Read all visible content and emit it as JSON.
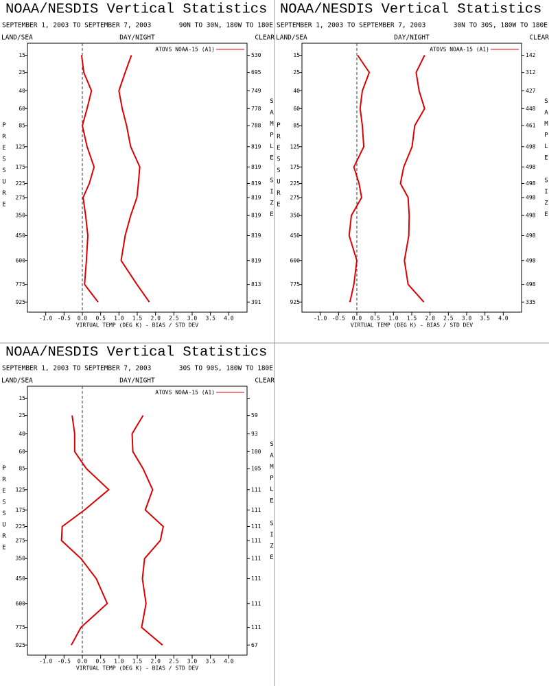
{
  "chart_data": [
    {
      "type": "line",
      "title": "NOAA/NESDIS Vertical Statistics",
      "subtitle": "SEPTEMBER 1, 2003 TO SEPTEMBER 7, 2003",
      "region": "90N TO 30N, 180W TO 180E",
      "header_left": "LAND/SEA",
      "header_center": "DAY/NIGHT",
      "header_right": "CLEAR",
      "y_label": "PRESSURE",
      "y2_label": "SAMPLE SIZE",
      "x_label": "VIRTUAL TEMP (DEG K) - BIAS / STD DEV",
      "y": [
        15,
        25,
        40,
        60,
        85,
        125,
        175,
        225,
        275,
        350,
        450,
        600,
        775,
        925
      ],
      "series": [
        {
          "name": "ATOVS NOAA-15 (A1)",
          "color": "#dd0000",
          "values": [
            -0.02,
            0.04,
            0.25,
            0.13,
            0.0,
            0.13,
            0.32,
            0.19,
            0.02,
            0.09,
            0.15,
            0.11,
            0.06,
            0.43
          ],
          "std_dev": [
            1.34,
            1.17,
            1.0,
            1.09,
            1.21,
            1.32,
            1.57,
            1.53,
            1.49,
            1.32,
            1.17,
            1.06,
            1.49,
            1.83
          ]
        }
      ],
      "sample_size": [
        530,
        695,
        749,
        778,
        788,
        819,
        819,
        819,
        819,
        819,
        819,
        819,
        813,
        391
      ],
      "xlim": [
        -1.5,
        4.5
      ],
      "xticks": [
        {
          "value": -1,
          "label": "-1.0"
        },
        -0.5,
        {
          "value": 0,
          "label": "0.0"
        },
        0.5,
        {
          "value": 1,
          "label": "1.0"
        },
        1.5,
        {
          "value": 2,
          "label": "2.0"
        },
        2.5,
        {
          "value": 3,
          "label": "3.0"
        },
        3.5,
        {
          "value": 4,
          "label": "4.0"
        }
      ],
      "ylim": [
        10,
        1020
      ],
      "y_scale": "power",
      "y_exponent": 0.286,
      "y_inverted": true,
      "yticks": [
        15,
        25,
        40,
        60,
        85,
        125,
        175,
        225,
        275,
        350,
        450,
        600,
        775,
        925
      ],
      "zero_line": true
    },
    {
      "type": "line",
      "title": "NOAA/NESDIS Vertical Statistics",
      "subtitle": "SEPTEMBER 1, 2003 TO SEPTEMBER 7, 2003",
      "region": "30N TO 30S, 180W TO 180E",
      "header_left": "LAND/SEA",
      "header_center": "DAY/NIGHT",
      "header_right": "CLEAR",
      "y_label": "PRESSURE",
      "y2_label": "SAMPLE SIZE",
      "x_label": "VIRTUAL TEMP (DEG K) - BIAS / STD DEV",
      "y": [
        15,
        25,
        40,
        60,
        85,
        125,
        175,
        225,
        275,
        350,
        450,
        600,
        775,
        925
      ],
      "series": [
        {
          "name": "ATOVS NOAA-15 (A1)",
          "color": "#dd0000",
          "values": [
            0.02,
            0.34,
            0.15,
            0.09,
            0.15,
            0.19,
            -0.08,
            0.06,
            0.13,
            -0.15,
            -0.21,
            0.0,
            -0.08,
            -0.19
          ],
          "std_dev": [
            1.85,
            1.62,
            1.7,
            1.85,
            1.58,
            1.51,
            1.28,
            1.19,
            1.4,
            1.43,
            1.42,
            1.3,
            1.4,
            1.83
          ]
        }
      ],
      "sample_size": [
        142,
        312,
        427,
        448,
        461,
        498,
        498,
        498,
        498,
        498,
        498,
        498,
        498,
        335
      ],
      "xlim": [
        -1.5,
        4.5
      ],
      "xticks": [
        {
          "value": -1,
          "label": "-1.0"
        },
        -0.5,
        {
          "value": 0,
          "label": "0.0"
        },
        0.5,
        {
          "value": 1,
          "label": "1.0"
        },
        1.5,
        {
          "value": 2,
          "label": "2.0"
        },
        2.5,
        {
          "value": 3,
          "label": "3.0"
        },
        3.5,
        {
          "value": 4,
          "label": "4.0"
        }
      ],
      "ylim": [
        10,
        1020
      ],
      "y_scale": "power",
      "y_exponent": 0.286,
      "y_inverted": true,
      "yticks": [
        15,
        25,
        40,
        60,
        85,
        125,
        175,
        225,
        275,
        350,
        450,
        600,
        775,
        925
      ],
      "zero_line": true
    },
    {
      "type": "line",
      "title": "NOAA/NESDIS Vertical Statistics",
      "subtitle": "SEPTEMBER 1, 2003 TO SEPTEMBER 7, 2003",
      "region": "30S TO 90S, 180W TO 180E",
      "header_left": "LAND/SEA",
      "header_center": "DAY/NIGHT",
      "header_right": "CLEAR",
      "y_label": "PRESSURE",
      "y2_label": "SAMPLE SIZE",
      "x_label": "VIRTUAL TEMP (DEG K) - BIAS / STD DEV",
      "y": [
        15,
        25,
        40,
        60,
        85,
        125,
        175,
        225,
        275,
        350,
        450,
        600,
        775,
        925
      ],
      "series": [
        {
          "name": "ATOVS NOAA-15 (A1)",
          "color": "#dd0000",
          "values": [
            null,
            -0.28,
            -0.21,
            -0.21,
            0.11,
            0.72,
            0.06,
            -0.55,
            -0.57,
            -0.04,
            0.38,
            0.68,
            -0.04,
            -0.3
          ],
          "std_dev": [
            null,
            1.66,
            1.36,
            1.38,
            1.66,
            1.92,
            1.72,
            2.21,
            2.13,
            1.7,
            1.64,
            1.74,
            1.62,
            2.19
          ]
        }
      ],
      "sample_size": [
        null,
        59,
        93,
        100,
        105,
        111,
        111,
        111,
        111,
        111,
        111,
        111,
        111,
        67
      ],
      "xlim": [
        -1.5,
        4.5
      ],
      "xticks": [
        {
          "value": -1,
          "label": "-1.0"
        },
        -0.5,
        {
          "value": 0,
          "label": "0.0"
        },
        0.5,
        {
          "value": 1,
          "label": "1.0"
        },
        1.5,
        {
          "value": 2,
          "label": "2.0"
        },
        2.5,
        {
          "value": 3,
          "label": "3.0"
        },
        3.5,
        {
          "value": 4,
          "label": "4.0"
        }
      ],
      "ylim": [
        10,
        1020
      ],
      "y_scale": "power",
      "y_exponent": 0.286,
      "y_inverted": true,
      "yticks": [
        15,
        25,
        40,
        60,
        85,
        125,
        175,
        225,
        275,
        350,
        450,
        600,
        775,
        925
      ],
      "zero_line": true
    }
  ]
}
